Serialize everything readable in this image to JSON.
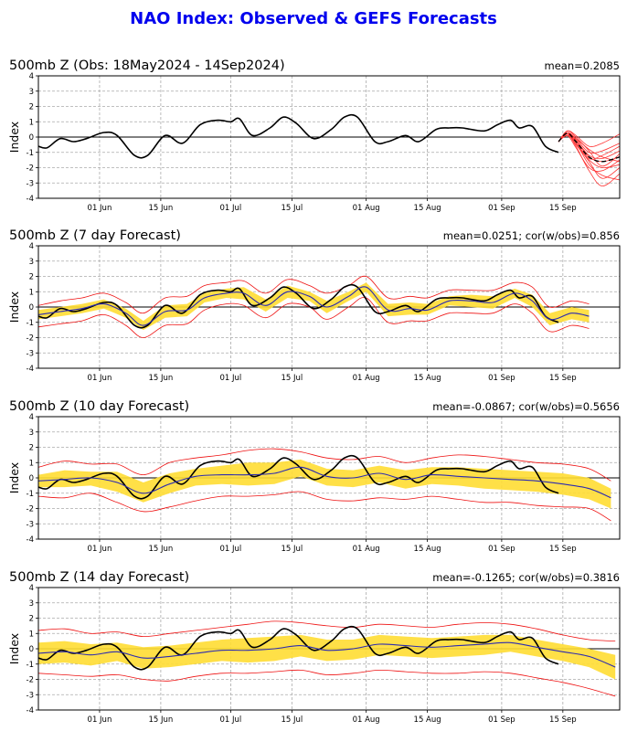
{
  "title": "NAO Index: Observed & GEFS Forecasts",
  "colors": {
    "title": "#0000ee",
    "observed": "#000000",
    "members": "#ff3333",
    "spread": "#ffdd33",
    "ens_mean": "#2b2bb0",
    "bounds": "#ee1111",
    "grid": "#aaaaaa"
  },
  "panels": [
    {
      "title": "500mb Z (Obs: 18May2024 - 14Sep2024)",
      "stat": "mean=0.2085",
      "ylabel": "Index"
    },
    {
      "title": "500mb Z (7 day Forecast)",
      "stat": "mean=0.0251; cor(w/obs)=0.856",
      "ylabel": "Index"
    },
    {
      "title": "500mb Z (10 day Forecast)",
      "stat": "mean=-0.0867; cor(w/obs)=0.5656",
      "ylabel": "Index"
    },
    {
      "title": "500mb Z (14 day Forecast)",
      "stat": "mean=-0.1265; cor(w/obs)=0.3816",
      "ylabel": "Index"
    }
  ],
  "chart_data": {
    "type": "line",
    "x_start": "2024-05-18",
    "x_range": [
      "2024-05-18",
      "2024-09-28"
    ],
    "xticks": [
      {
        "date": "2024-06-01",
        "label": "01 Jun"
      },
      {
        "date": "2024-06-15",
        "label": "15 Jun"
      },
      {
        "date": "2024-07-01",
        "label": "01 Jul"
      },
      {
        "date": "2024-07-15",
        "label": "15 Jul"
      },
      {
        "date": "2024-08-01",
        "label": "01 Aug"
      },
      {
        "date": "2024-08-15",
        "label": "15 Aug"
      },
      {
        "date": "2024-09-01",
        "label": "01 Sep"
      },
      {
        "date": "2024-09-15",
        "label": "15 Sep"
      }
    ],
    "ylim": [
      -4,
      4
    ],
    "yticks": [
      -4,
      -3,
      -2,
      -1,
      0,
      1,
      2,
      3,
      4
    ],
    "grid": true,
    "observed": {
      "dates": [
        "2024-05-18",
        "2024-05-20",
        "2024-05-23",
        "2024-05-26",
        "2024-05-29",
        "2024-06-02",
        "2024-06-05",
        "2024-06-09",
        "2024-06-12",
        "2024-06-16",
        "2024-06-20",
        "2024-06-24",
        "2024-06-28",
        "2024-07-01",
        "2024-07-03",
        "2024-07-06",
        "2024-07-10",
        "2024-07-13",
        "2024-07-16",
        "2024-07-20",
        "2024-07-24",
        "2024-07-27",
        "2024-07-30",
        "2024-08-03",
        "2024-08-06",
        "2024-08-10",
        "2024-08-13",
        "2024-08-17",
        "2024-08-20",
        "2024-08-23",
        "2024-08-28",
        "2024-08-31",
        "2024-09-03",
        "2024-09-05",
        "2024-09-08",
        "2024-09-11",
        "2024-09-14"
      ],
      "values": [
        -0.6,
        -0.7,
        -0.1,
        -0.3,
        -0.1,
        0.3,
        0.1,
        -1.2,
        -1.2,
        0.1,
        -0.4,
        0.8,
        1.1,
        1.0,
        1.2,
        0.1,
        0.6,
        1.3,
        0.9,
        -0.1,
        0.5,
        1.3,
        1.3,
        -0.3,
        -0.3,
        0.1,
        -0.3,
        0.5,
        0.6,
        0.6,
        0.4,
        0.8,
        1.1,
        0.6,
        0.7,
        -0.6,
        -1.0
      ]
    },
    "gefs_members": [
      {
        "dates": [
          "2024-09-14",
          "2024-09-16",
          "2024-09-18",
          "2024-09-21",
          "2024-09-24",
          "2024-09-28"
        ],
        "values": [
          -0.3,
          0.3,
          -0.2,
          -1.3,
          -1.6,
          -1.3
        ]
      },
      {
        "dates": [
          "2024-09-14",
          "2024-09-16",
          "2024-09-18",
          "2024-09-21",
          "2024-09-24",
          "2024-09-28"
        ],
        "values": [
          -0.3,
          0.2,
          -0.6,
          -2.2,
          -3.2,
          -2.4
        ]
      },
      {
        "dates": [
          "2024-09-14",
          "2024-09-16",
          "2024-09-18",
          "2024-09-21",
          "2024-09-24",
          "2024-09-28"
        ],
        "values": [
          -0.3,
          0.4,
          0.1,
          -0.6,
          -0.4,
          0.2
        ]
      },
      {
        "dates": [
          "2024-09-14",
          "2024-09-16",
          "2024-09-18",
          "2024-09-21",
          "2024-09-24",
          "2024-09-28"
        ],
        "values": [
          -0.3,
          0.1,
          -0.4,
          -1.8,
          -2.5,
          -2.8
        ]
      },
      {
        "dates": [
          "2024-09-14",
          "2024-09-16",
          "2024-09-18",
          "2024-09-21",
          "2024-09-24",
          "2024-09-28"
        ],
        "values": [
          -0.3,
          0.3,
          -0.1,
          -1.0,
          -0.9,
          -0.4
        ]
      },
      {
        "dates": [
          "2024-09-14",
          "2024-09-16",
          "2024-09-18",
          "2024-09-21",
          "2024-09-24",
          "2024-09-28"
        ],
        "values": [
          -0.3,
          0.2,
          -0.5,
          -1.5,
          -2.0,
          -1.8
        ]
      },
      {
        "dates": [
          "2024-09-14",
          "2024-09-16",
          "2024-09-18",
          "2024-09-21",
          "2024-09-24",
          "2024-09-28"
        ],
        "values": [
          -0.3,
          0.3,
          -0.2,
          -1.2,
          -1.4,
          -0.9
        ]
      },
      {
        "dates": [
          "2024-09-14",
          "2024-09-16",
          "2024-09-18",
          "2024-09-21",
          "2024-09-24",
          "2024-09-28"
        ],
        "values": [
          -0.3,
          0.4,
          0.0,
          -0.9,
          -1.9,
          -1.1
        ]
      },
      {
        "dates": [
          "2024-09-14",
          "2024-09-16",
          "2024-09-18",
          "2024-09-21",
          "2024-09-24",
          "2024-09-28"
        ],
        "values": [
          -0.3,
          0.1,
          -0.7,
          -2.0,
          -2.2,
          -1.5
        ]
      },
      {
        "dates": [
          "2024-09-14",
          "2024-09-16",
          "2024-09-18",
          "2024-09-21",
          "2024-09-24",
          "2024-09-28"
        ],
        "values": [
          -0.3,
          0.2,
          -0.3,
          -1.4,
          -1.2,
          -0.6
        ]
      },
      {
        "dates": [
          "2024-09-14",
          "2024-09-16",
          "2024-09-18",
          "2024-09-21",
          "2024-09-24",
          "2024-09-28"
        ],
        "values": [
          -0.3,
          0.3,
          -0.4,
          -1.6,
          -2.7,
          -2.0
        ]
      },
      {
        "dates": [
          "2024-09-14",
          "2024-09-16",
          "2024-09-18",
          "2024-09-21",
          "2024-09-24",
          "2024-09-28"
        ],
        "values": [
          -0.3,
          0.2,
          -0.1,
          -0.8,
          -1.3,
          -1.6
        ]
      }
    ],
    "gefs_mean": {
      "dates": [
        "2024-09-14",
        "2024-09-16",
        "2024-09-18",
        "2024-09-21",
        "2024-09-24",
        "2024-09-28"
      ],
      "values": [
        -0.3,
        0.25,
        -0.3,
        -1.3,
        -1.6,
        -1.3
      ]
    },
    "forecasts": [
      {
        "lead": "7 day",
        "dates": [
          "2024-05-18",
          "2024-05-23",
          "2024-05-28",
          "2024-06-02",
          "2024-06-07",
          "2024-06-11",
          "2024-06-16",
          "2024-06-21",
          "2024-06-25",
          "2024-06-30",
          "2024-07-04",
          "2024-07-09",
          "2024-07-14",
          "2024-07-19",
          "2024-07-23",
          "2024-07-28",
          "2024-08-01",
          "2024-08-06",
          "2024-08-11",
          "2024-08-15",
          "2024-08-20",
          "2024-08-25",
          "2024-08-30",
          "2024-09-04",
          "2024-09-08",
          "2024-09-12",
          "2024-09-17",
          "2024-09-21"
        ],
        "mean": [
          -0.5,
          -0.3,
          -0.1,
          0.2,
          -0.4,
          -1.2,
          -0.3,
          -0.2,
          0.6,
          0.9,
          0.9,
          0.1,
          1.0,
          0.7,
          0.0,
          0.7,
          1.3,
          -0.2,
          -0.1,
          -0.2,
          0.4,
          0.4,
          0.3,
          0.9,
          0.4,
          -0.8,
          -0.4,
          -0.6
        ],
        "upper": [
          0.1,
          0.4,
          0.6,
          0.9,
          0.3,
          -0.4,
          0.6,
          0.7,
          1.4,
          1.6,
          1.7,
          0.9,
          1.8,
          1.4,
          0.9,
          1.4,
          2.0,
          0.6,
          0.7,
          0.6,
          1.1,
          1.1,
          1.1,
          1.6,
          1.3,
          0.0,
          0.4,
          0.2
        ],
        "lower": [
          -1.3,
          -1.1,
          -0.9,
          -0.5,
          -1.2,
          -2.0,
          -1.2,
          -1.1,
          -0.2,
          0.2,
          0.1,
          -0.7,
          0.2,
          0.0,
          -0.8,
          0.0,
          0.6,
          -1.0,
          -0.9,
          -0.9,
          -0.4,
          -0.4,
          -0.4,
          0.2,
          -0.4,
          -1.6,
          -1.2,
          -1.4
        ],
        "spread_hi": [
          -0.2,
          0.0,
          0.2,
          0.5,
          -0.1,
          -0.9,
          0.1,
          0.2,
          0.9,
          1.2,
          1.3,
          0.5,
          1.4,
          1.0,
          0.4,
          1.0,
          1.6,
          0.2,
          0.3,
          0.2,
          0.7,
          0.8,
          0.7,
          1.2,
          0.8,
          -0.4,
          0.0,
          -0.2
        ],
        "spread_lo": [
          -0.8,
          -0.6,
          -0.4,
          -0.1,
          -0.7,
          -1.5,
          -0.7,
          -0.6,
          0.3,
          0.6,
          0.5,
          -0.3,
          0.6,
          0.4,
          -0.4,
          0.4,
          1.0,
          -0.6,
          -0.5,
          -0.5,
          0.1,
          0.0,
          -0.1,
          0.6,
          0.0,
          -1.2,
          -0.8,
          -1.0
        ]
      },
      {
        "lead": "10 day",
        "dates": [
          "2024-05-18",
          "2024-05-24",
          "2024-05-30",
          "2024-06-05",
          "2024-06-11",
          "2024-06-17",
          "2024-06-23",
          "2024-06-29",
          "2024-07-05",
          "2024-07-11",
          "2024-07-17",
          "2024-07-23",
          "2024-07-29",
          "2024-08-04",
          "2024-08-10",
          "2024-08-16",
          "2024-08-22",
          "2024-08-28",
          "2024-09-03",
          "2024-09-09",
          "2024-09-15",
          "2024-09-21",
          "2024-09-26"
        ],
        "mean": [
          -0.2,
          -0.1,
          0.0,
          -0.3,
          -1.0,
          -0.4,
          0.1,
          0.2,
          0.2,
          0.3,
          0.7,
          0.1,
          0.0,
          0.3,
          -0.1,
          0.2,
          0.1,
          0.0,
          -0.1,
          -0.2,
          -0.4,
          -0.7,
          -1.3
        ],
        "upper": [
          0.7,
          1.1,
          0.9,
          0.9,
          0.2,
          1.0,
          1.3,
          1.5,
          1.8,
          1.9,
          1.7,
          1.3,
          1.2,
          1.4,
          1.0,
          1.3,
          1.5,
          1.4,
          1.2,
          1.0,
          0.9,
          0.6,
          -0.2
        ],
        "lower": [
          -1.2,
          -1.3,
          -1.0,
          -1.6,
          -2.2,
          -1.9,
          -1.5,
          -1.2,
          -1.2,
          -1.1,
          -0.9,
          -1.4,
          -1.5,
          -1.3,
          -1.4,
          -1.2,
          -1.4,
          -1.6,
          -1.6,
          -1.8,
          -1.9,
          -2.0,
          -2.8
        ],
        "spread_hi": [
          0.2,
          0.5,
          0.4,
          0.4,
          -0.3,
          0.3,
          0.6,
          0.8,
          1.0,
          1.0,
          1.2,
          0.6,
          0.5,
          0.8,
          0.5,
          0.7,
          0.7,
          0.6,
          0.5,
          0.4,
          0.3,
          0.0,
          -0.7
        ],
        "spread_lo": [
          -0.6,
          -0.6,
          -0.5,
          -0.9,
          -1.6,
          -1.0,
          -0.5,
          -0.4,
          -0.5,
          -0.4,
          0.1,
          -0.5,
          -0.6,
          -0.3,
          -0.7,
          -0.4,
          -0.5,
          -0.7,
          -0.8,
          -0.9,
          -1.1,
          -1.4,
          -2.0
        ]
      },
      {
        "lead": "14 day",
        "dates": [
          "2024-05-18",
          "2024-05-24",
          "2024-05-30",
          "2024-06-05",
          "2024-06-11",
          "2024-06-17",
          "2024-06-23",
          "2024-06-29",
          "2024-07-05",
          "2024-07-11",
          "2024-07-17",
          "2024-07-23",
          "2024-07-29",
          "2024-08-04",
          "2024-08-10",
          "2024-08-16",
          "2024-08-22",
          "2024-08-28",
          "2024-09-03",
          "2024-09-09",
          "2024-09-15",
          "2024-09-21",
          "2024-09-27"
        ],
        "mean": [
          -0.3,
          -0.2,
          -0.4,
          -0.2,
          -0.6,
          -0.5,
          -0.3,
          -0.1,
          -0.1,
          0.0,
          0.2,
          -0.1,
          0.0,
          0.3,
          0.2,
          0.1,
          0.2,
          0.3,
          0.4,
          0.1,
          -0.2,
          -0.5,
          -1.2
        ],
        "upper": [
          1.2,
          1.3,
          1.0,
          1.1,
          0.8,
          1.0,
          1.2,
          1.4,
          1.6,
          1.8,
          1.7,
          1.5,
          1.4,
          1.6,
          1.5,
          1.4,
          1.6,
          1.7,
          1.6,
          1.3,
          0.9,
          0.6,
          0.5
        ],
        "lower": [
          -1.6,
          -1.7,
          -1.8,
          -1.7,
          -2.0,
          -2.1,
          -1.8,
          -1.6,
          -1.6,
          -1.5,
          -1.4,
          -1.7,
          -1.6,
          -1.4,
          -1.5,
          -1.6,
          -1.6,
          -1.5,
          -1.6,
          -1.9,
          -2.2,
          -2.6,
          -3.1
        ],
        "spread_hi": [
          0.4,
          0.5,
          0.3,
          0.4,
          0.1,
          0.2,
          0.4,
          0.6,
          0.7,
          0.8,
          0.9,
          0.6,
          0.6,
          0.9,
          0.8,
          0.7,
          0.8,
          0.9,
          0.9,
          0.6,
          0.3,
          0.0,
          -0.4
        ],
        "spread_lo": [
          -1.0,
          -0.9,
          -1.1,
          -0.8,
          -1.3,
          -1.2,
          -1.0,
          -0.8,
          -0.9,
          -0.8,
          -0.5,
          -0.8,
          -0.7,
          -0.4,
          -0.5,
          -0.6,
          -0.5,
          -0.4,
          -0.2,
          -0.5,
          -0.8,
          -1.2,
          -2.0
        ]
      }
    ]
  }
}
